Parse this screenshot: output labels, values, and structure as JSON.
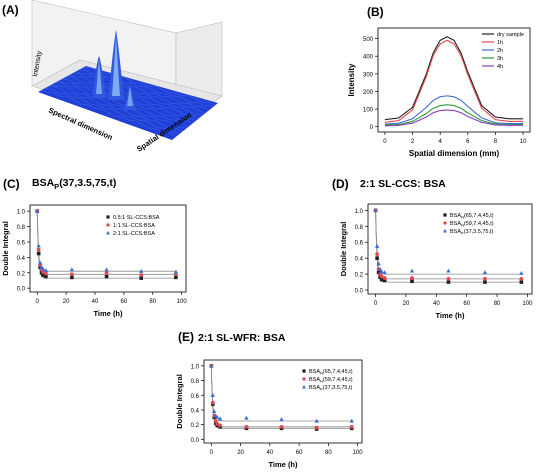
{
  "panels": {
    "a": {
      "letter": "(A)",
      "zlabel": "Intensity",
      "xlabel": "Spectral dimension",
      "ylabel": "Spatial dimension"
    },
    "b": {
      "letter": "(B)"
    },
    "c": {
      "letter": "(C)"
    },
    "d": {
      "letter": "(D)"
    },
    "e": {
      "letter": "(E)"
    }
  },
  "colors": {
    "dark": "#202020",
    "red": "#e0484f",
    "blue": "#3b6fd8",
    "green": "#2e9a3a",
    "purple": "#8a3fb8",
    "surface": "#1f3fd6",
    "peak": "#8fb8f2"
  },
  "chart_data": [
    {
      "id": "B",
      "type": "line",
      "title": "",
      "xlabel": "Spatial dimension (mm)",
      "ylabel": "Intensity",
      "xlim": [
        -0.5,
        10.5
      ],
      "ylim": [
        -30,
        560
      ],
      "xticks": [
        "0",
        "2",
        "4",
        "6",
        "8",
        "10"
      ],
      "yticks": [
        "0",
        "100",
        "200",
        "300",
        "400",
        "500"
      ],
      "legend": "top-right",
      "x": [
        0,
        1,
        2,
        3,
        3.5,
        4,
        4.5,
        5,
        5.5,
        6,
        7,
        8,
        9,
        10
      ],
      "series": [
        {
          "name": "dry sample",
          "color": "#202020",
          "values": [
            40,
            50,
            110,
            300,
            420,
            490,
            510,
            490,
            420,
            310,
            120,
            55,
            45,
            45
          ]
        },
        {
          "name": "1h",
          "color": "#e0484f",
          "values": [
            25,
            35,
            95,
            285,
            405,
            470,
            490,
            470,
            405,
            295,
            105,
            40,
            30,
            30
          ]
        },
        {
          "name": "2h",
          "color": "#3b6fd8",
          "values": [
            15,
            20,
            45,
            110,
            150,
            170,
            175,
            170,
            150,
            115,
            50,
            22,
            18,
            18
          ]
        },
        {
          "name": "3h",
          "color": "#2e9a3a",
          "values": [
            10,
            12,
            30,
            75,
            105,
            120,
            125,
            120,
            105,
            78,
            35,
            15,
            12,
            12
          ]
        },
        {
          "name": "4h",
          "color": "#8a3fb8",
          "values": [
            5,
            8,
            20,
            55,
            80,
            92,
            95,
            92,
            80,
            58,
            25,
            10,
            8,
            8
          ]
        }
      ]
    },
    {
      "id": "C",
      "type": "scatter",
      "title": "BSA",
      "title_sub": "P",
      "title_rest": "(37,3.5,75,t)",
      "xlabel": "Time (h)",
      "ylabel": "Double Integral",
      "xlim": [
        -5,
        103
      ],
      "ylim": [
        -0.05,
        1.08
      ],
      "xticks": [
        "0",
        "20",
        "40",
        "60",
        "80",
        "100"
      ],
      "yticks": [
        "0.0",
        "0.2",
        "0.4",
        "0.6",
        "0.8",
        "1.0"
      ],
      "legend": "top-right",
      "x": [
        0,
        1,
        2,
        3,
        4,
        6,
        24,
        48,
        72,
        96
      ],
      "series": [
        {
          "name": "0.5:1 SL-CCS:BSA",
          "marker": "square",
          "color": "#202020",
          "plateau": 0.13,
          "values": [
            1.0,
            0.45,
            0.27,
            0.2,
            0.17,
            0.15,
            0.14,
            0.15,
            0.13,
            0.14
          ]
        },
        {
          "name": "1:1 SL-CCS:BSA",
          "marker": "circle",
          "color": "#e0484f",
          "plateau": 0.18,
          "values": [
            1.0,
            0.5,
            0.3,
            0.24,
            0.21,
            0.19,
            0.18,
            0.2,
            0.17,
            0.18
          ]
        },
        {
          "name": "2:1 SL-CCS:BSA",
          "marker": "triangle",
          "color": "#3b6fd8",
          "plateau": 0.22,
          "values": [
            1.0,
            0.55,
            0.33,
            0.27,
            0.25,
            0.23,
            0.24,
            0.24,
            0.22,
            0.21
          ]
        }
      ]
    },
    {
      "id": "D",
      "type": "scatter",
      "title": "2:1 SL-CCS: BSA",
      "xlabel": "Time (h)",
      "ylabel": "Double Integral",
      "xlim": [
        -5,
        103
      ],
      "ylim": [
        -0.05,
        1.08
      ],
      "xticks": [
        "0",
        "20",
        "40",
        "60",
        "80",
        "100"
      ],
      "yticks": [
        "0.0",
        "0.2",
        "0.4",
        "0.6",
        "0.8",
        "1.0"
      ],
      "legend": "top-right",
      "x": [
        0,
        1,
        2,
        3,
        4,
        6,
        24,
        48,
        72,
        96
      ],
      "series": [
        {
          "name_main": "BSA",
          "name_sub": "N",
          "name_rest": "(65,7.4,45,t)",
          "marker": "square",
          "color": "#202020",
          "plateau": 0.1,
          "values": [
            1.0,
            0.4,
            0.22,
            0.16,
            0.13,
            0.12,
            0.11,
            0.1,
            0.1,
            0.1
          ]
        },
        {
          "name_main": "BSA",
          "name_sub": "N",
          "name_rest": "(59,7.4,45,t)",
          "marker": "circle",
          "color": "#e0484f",
          "plateau": 0.14,
          "values": [
            1.0,
            0.45,
            0.26,
            0.2,
            0.17,
            0.15,
            0.15,
            0.14,
            0.14,
            0.14
          ]
        },
        {
          "name_main": "BSA",
          "name_sub": "P",
          "name_rest": "(37,3.5,75,t)",
          "marker": "triangle",
          "color": "#3b6fd8",
          "plateau": 0.2,
          "values": [
            1.0,
            0.55,
            0.33,
            0.26,
            0.23,
            0.22,
            0.24,
            0.24,
            0.22,
            0.21
          ]
        }
      ]
    },
    {
      "id": "E",
      "type": "scatter",
      "title": "2:1 SL-WFR: BSA",
      "xlabel": "Time (h)",
      "ylabel": "Double Integral",
      "xlim": [
        -5,
        103
      ],
      "ylim": [
        -0.05,
        1.08
      ],
      "xticks": [
        "0",
        "20",
        "40",
        "60",
        "80",
        "100"
      ],
      "yticks": [
        "0.0",
        "0.2",
        "0.4",
        "0.6",
        "0.8",
        "1.0"
      ],
      "legend": "top-right",
      "x": [
        0,
        1,
        2,
        3,
        4,
        6,
        24,
        48,
        72,
        96
      ],
      "series": [
        {
          "name_main": "BSA",
          "name_sub": "N",
          "name_rest": "(65,7.4,45,t)",
          "marker": "square",
          "color": "#202020",
          "plateau": 0.15,
          "values": [
            1.0,
            0.48,
            0.3,
            0.22,
            0.19,
            0.17,
            0.15,
            0.15,
            0.14,
            0.15
          ]
        },
        {
          "name_main": "BSA",
          "name_sub": "N",
          "name_rest": "(59,7.4,45,t)",
          "marker": "circle",
          "color": "#e0484f",
          "plateau": 0.17,
          "values": [
            1.0,
            0.5,
            0.32,
            0.25,
            0.21,
            0.19,
            0.17,
            0.17,
            0.16,
            0.17
          ]
        },
        {
          "name_main": "BSA",
          "name_sub": "P",
          "name_rest": "(37,3.5,75,t)",
          "marker": "triangle",
          "color": "#3b6fd8",
          "plateau": 0.25,
          "values": [
            1.0,
            0.6,
            0.38,
            0.32,
            0.3,
            0.28,
            0.29,
            0.27,
            0.25,
            0.25
          ]
        }
      ]
    }
  ]
}
